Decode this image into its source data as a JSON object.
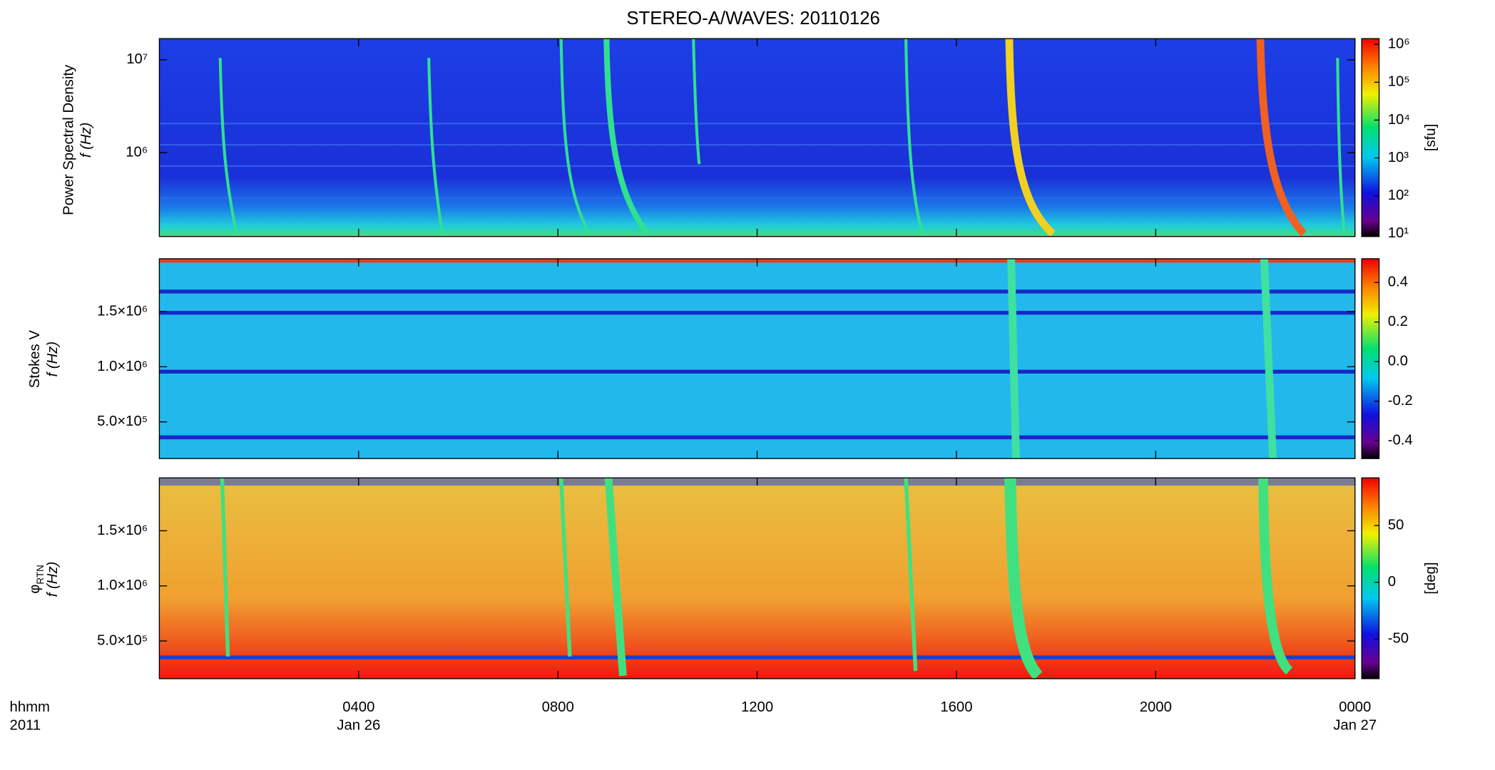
{
  "chart_data": [
    {
      "type": "heatmap",
      "title": "STEREO-A/WAVES: 20110126",
      "ylabel": "Power Spectral Density",
      "ylabel2": "f (Hz)",
      "yscale": "log",
      "ylim": [
        125000,
        16900000
      ],
      "yticks": [
        {
          "value": 1000000,
          "label": "10⁶"
        },
        {
          "value": 10000000,
          "label": "10⁷"
        }
      ],
      "colorbar": {
        "label": "[sfu]",
        "scale": "log",
        "lim": [
          8.4,
          1420000
        ],
        "ticks": [
          {
            "value": 10,
            "label": "10¹"
          },
          {
            "value": 100,
            "label": "10²"
          },
          {
            "value": 1000,
            "label": "10³"
          },
          {
            "value": 10000,
            "label": "10⁴"
          },
          {
            "value": 100000,
            "label": "10⁵"
          },
          {
            "value": 1000000,
            "label": "10⁶"
          }
        ]
      }
    },
    {
      "type": "heatmap",
      "ylabel": "Stokes V",
      "ylabel2": "f (Hz)",
      "yscale": "linear",
      "ylim": [
        167000,
        1980000
      ],
      "yticks": [
        {
          "value": 500000,
          "label": "5.0×10⁵"
        },
        {
          "value": 1000000,
          "label": "1.0×10⁶"
        },
        {
          "value": 1500000,
          "label": "1.5×10⁶"
        }
      ],
      "colorbar": {
        "scale": "linear",
        "lim": [
          -0.49,
          0.52
        ],
        "ticks": [
          -0.4,
          -0.2,
          {
            "value": 0,
            "label": "0.0"
          },
          0.2,
          0.4
        ]
      }
    },
    {
      "type": "heatmap",
      "ylabel": "φ",
      "ylabel_sub": "RTN",
      "ylabel2": "f (Hz)",
      "yscale": "linear",
      "ylim": [
        158000,
        1980000
      ],
      "yticks": [
        {
          "value": 500000,
          "label": "5.0×10⁵"
        },
        {
          "value": 1000000,
          "label": "1.0×10⁶"
        },
        {
          "value": 1500000,
          "label": "1.5×10⁶"
        }
      ],
      "colorbar": {
        "label": "[deg]",
        "scale": "linear",
        "lim": [
          -85,
          92
        ],
        "ticks": [
          -50,
          0,
          50
        ]
      },
      "xlabel": "hhmm",
      "xlabel2": "2011",
      "xlim": [
        0,
        24
      ],
      "xticks": [
        {
          "value": 4,
          "label": "0400"
        },
        {
          "value": 8,
          "label": "0800"
        },
        {
          "value": 12,
          "label": "1200"
        },
        {
          "value": 16,
          "label": "1600"
        },
        {
          "value": 20,
          "label": "2000"
        },
        {
          "value": 24,
          "label": "0000"
        }
      ],
      "xdates": [
        {
          "value": 4,
          "label": "Jan 26"
        },
        {
          "value": 24,
          "label": "Jan 27"
        }
      ]
    }
  ]
}
